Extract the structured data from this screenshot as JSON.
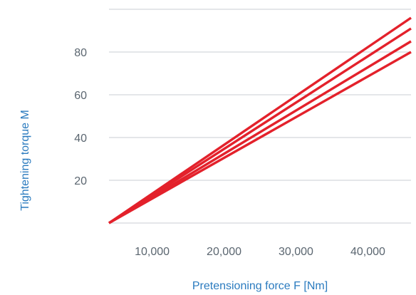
{
  "chart_data": {
    "type": "line",
    "title": "",
    "xlabel": "Pretensioning force F [Nm]",
    "ylabel": "Tightening torque M",
    "xlim": [
      4000,
      46000
    ],
    "ylim": [
      0,
      100
    ],
    "x_ticks": [
      10000,
      20000,
      30000,
      40000
    ],
    "x_tick_labels": [
      "10,000",
      "20,000",
      "30,000",
      "40,000"
    ],
    "y_ticks": [
      20,
      40,
      60,
      80
    ],
    "y_tick_labels": [
      "20",
      "40",
      "60",
      "80"
    ],
    "grid": true,
    "legend": "none",
    "line_color": "#e3212b",
    "series": [
      {
        "x": [
          4000,
          46000
        ],
        "values": [
          0,
          96
        ]
      },
      {
        "x": [
          4000,
          46000
        ],
        "values": [
          0,
          91
        ]
      },
      {
        "x": [
          4000,
          46000
        ],
        "values": [
          0,
          85
        ]
      },
      {
        "x": [
          4000,
          46000
        ],
        "values": [
          0,
          80
        ]
      }
    ]
  }
}
